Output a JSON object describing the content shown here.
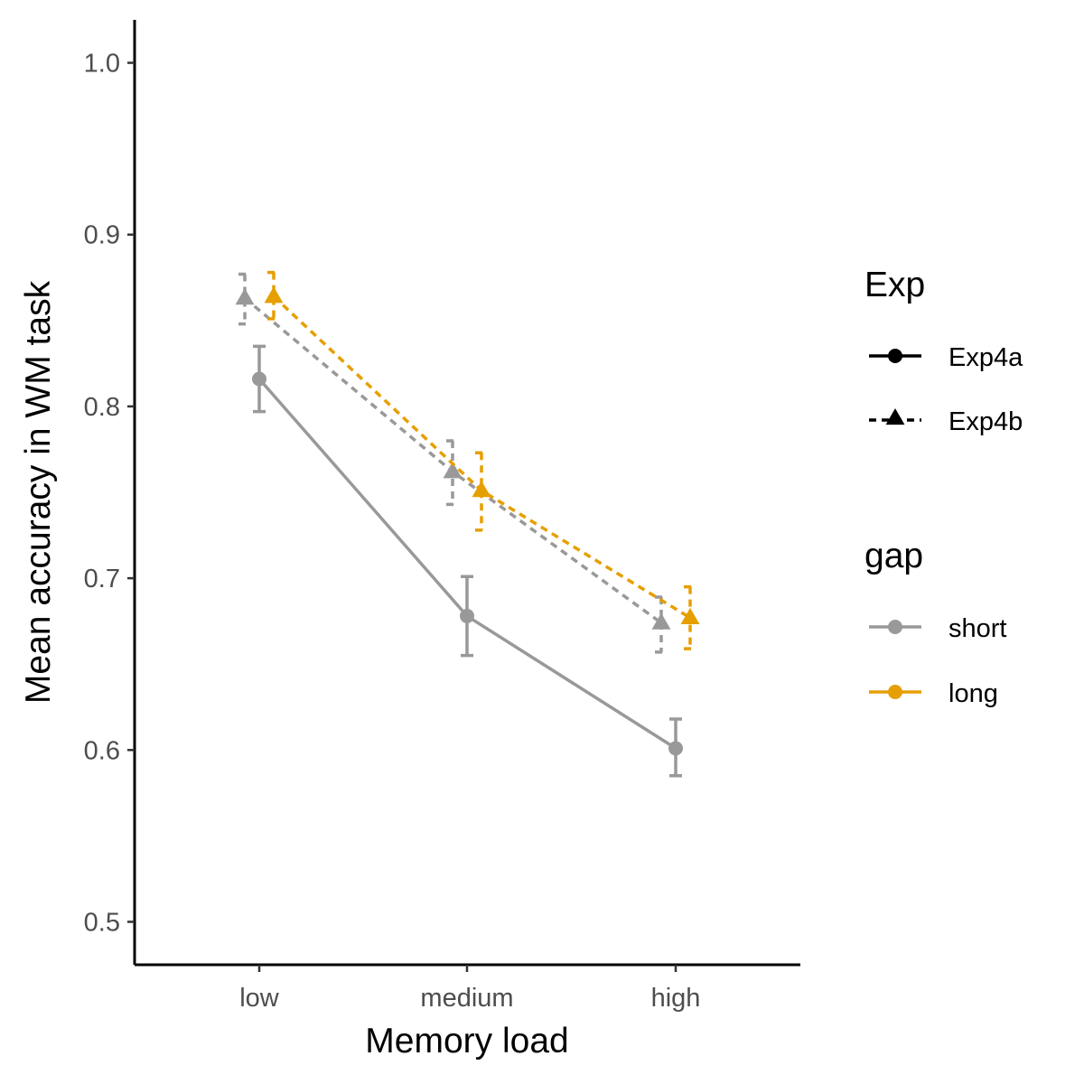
{
  "chart_data": {
    "type": "line",
    "title": "",
    "xlabel": "Memory load",
    "ylabel": "Mean accuracy in WM task",
    "categories": [
      "low",
      "medium",
      "high"
    ],
    "ylim": [
      0.475,
      1.025
    ],
    "yticks": [
      0.5,
      0.6,
      0.7,
      0.8,
      0.9,
      1.0
    ],
    "ytick_labels": [
      "0.5",
      "0.6",
      "0.7",
      "0.8",
      "0.9",
      "1.0"
    ],
    "grid": false,
    "legend_position": "right",
    "legends": [
      {
        "title": "Exp",
        "entries": [
          {
            "label": "Exp4a",
            "line": "solid",
            "marker": "circle"
          },
          {
            "label": "Exp4b",
            "line": "dashed",
            "marker": "triangle"
          }
        ]
      },
      {
        "title": "gap",
        "entries": [
          {
            "label": "short",
            "color": "#999999"
          },
          {
            "label": "long",
            "color": "#E69F00"
          }
        ]
      }
    ],
    "series": [
      {
        "exp": "Exp4a",
        "gap": "short",
        "color": "#999999",
        "line": "solid",
        "marker": "circle",
        "values": [
          0.816,
          0.678,
          0.601
        ],
        "error_low": [
          0.797,
          0.655,
          0.585
        ],
        "error_high": [
          0.835,
          0.701,
          0.618
        ]
      },
      {
        "exp": "Exp4b",
        "gap": "short",
        "color": "#999999",
        "line": "dashed",
        "marker": "triangle",
        "values": [
          0.863,
          0.762,
          0.674
        ],
        "error_low": [
          0.848,
          0.743,
          0.657
        ],
        "error_high": [
          0.877,
          0.78,
          0.689
        ]
      },
      {
        "exp": "Exp4b",
        "gap": "long",
        "color": "#E69F00",
        "line": "dashed",
        "marker": "triangle",
        "values": [
          0.864,
          0.751,
          0.677
        ],
        "error_low": [
          0.851,
          0.728,
          0.659
        ],
        "error_high": [
          0.878,
          0.773,
          0.695
        ]
      }
    ]
  }
}
